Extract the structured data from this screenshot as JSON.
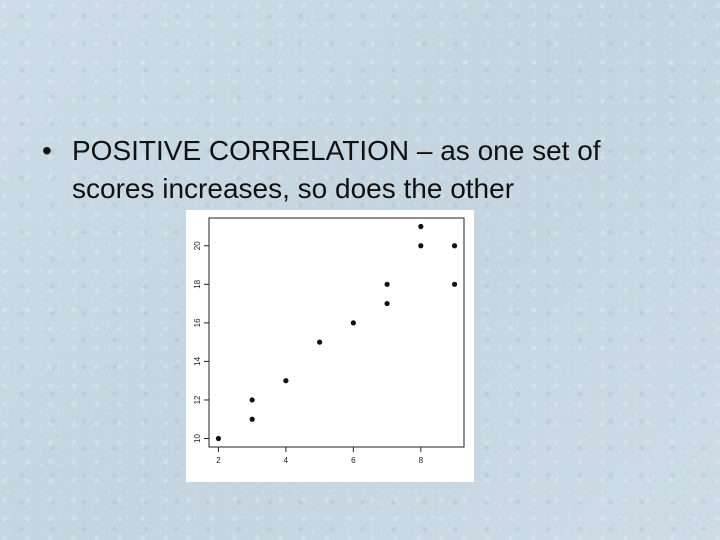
{
  "slide": {
    "bullet_symbol": "•",
    "bullet_text": "POSITIVE CORRELATION – as one set of\nscores increases, so does the other"
  },
  "chart_data": {
    "type": "scatter",
    "title": "",
    "xlabel": "",
    "ylabel": "",
    "xlim": [
      2,
      9
    ],
    "ylim": [
      10,
      21
    ],
    "x_ticks": [
      2,
      4,
      6,
      8
    ],
    "y_ticks": [
      10,
      12,
      14,
      16,
      18,
      20
    ],
    "grid": false,
    "points": [
      {
        "x": 2,
        "y": 10
      },
      {
        "x": 3,
        "y": 11
      },
      {
        "x": 3,
        "y": 12
      },
      {
        "x": 4,
        "y": 13
      },
      {
        "x": 5,
        "y": 15
      },
      {
        "x": 6,
        "y": 16
      },
      {
        "x": 7,
        "y": 17
      },
      {
        "x": 7,
        "y": 18
      },
      {
        "x": 8,
        "y": 20
      },
      {
        "x": 8,
        "y": 21
      },
      {
        "x": 9,
        "y": 18
      },
      {
        "x": 9,
        "y": 20
      }
    ],
    "marker_color": "#111111"
  }
}
